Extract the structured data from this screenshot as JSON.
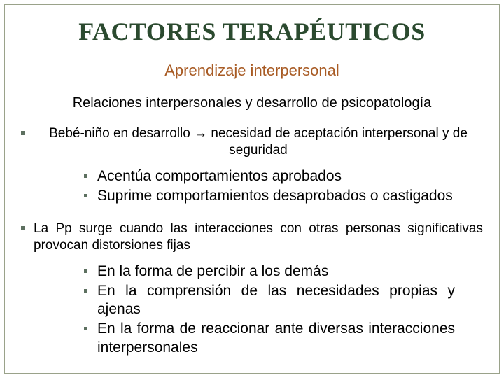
{
  "colors": {
    "frame_border": "#9aa28a",
    "title_color": "#2b4a2f",
    "subtitle_color": "#a85b24",
    "bullet_color": "#5d7060"
  },
  "title": "FACTORES TERAPÉUTICOS",
  "subtitle": "Aprendizaje interpersonal",
  "section_heading": "Relaciones interpersonales y desarrollo de psicopatología",
  "b1": {
    "text": "Bebé-niño en desarrollo → necesidad de aceptación interpersonal y de seguridad",
    "sub": [
      "Acentúa comportamientos aprobados",
      "Suprime comportamientos desaprobados o castigados"
    ]
  },
  "b2": {
    "text": "La Pp surge cuando las interacciones con otras personas significativas provocan distorsiones fijas",
    "sub": [
      "En la forma de percibir a los demás",
      "En la comprensión de las necesidades propias y ajenas",
      "En la forma de reaccionar ante diversas interacciones interpersonales"
    ]
  }
}
